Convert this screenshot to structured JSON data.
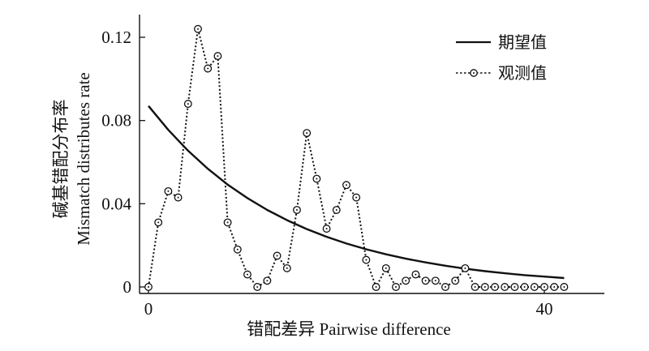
{
  "chart_data": {
    "type": "line",
    "xlabel": "错配差异 Pairwise difference",
    "ylabel_cn": "碱基错配分布率",
    "ylabel_en": "Mismatch distributes rate",
    "xlim": [
      0,
      46
    ],
    "ylim": [
      0,
      0.13
    ],
    "x_ticks": [
      0,
      40
    ],
    "x_tick_labels": [
      "0",
      "40"
    ],
    "y_ticks": [
      0,
      0.04,
      0.08,
      0.12
    ],
    "y_tick_labels": [
      "0",
      "0.04",
      "0.08",
      "0.12"
    ],
    "legend_position": "top-right",
    "colors": {
      "line": "#111111",
      "background": "#ffffff"
    },
    "series": [
      {
        "name": "期望值",
        "style": "solid",
        "x": [
          0,
          2,
          4,
          6,
          8,
          10,
          12,
          14,
          16,
          18,
          20,
          22,
          24,
          26,
          28,
          30,
          32,
          34,
          36,
          38,
          40,
          42
        ],
        "values": [
          0.087,
          0.0755,
          0.0655,
          0.0568,
          0.0492,
          0.0427,
          0.037,
          0.0321,
          0.0278,
          0.0241,
          0.0209,
          0.0181,
          0.0157,
          0.0136,
          0.0118,
          0.0102,
          0.0088,
          0.0076,
          0.0066,
          0.0057,
          0.005,
          0.0043
        ]
      },
      {
        "name": "观测值",
        "style": "dotted-markers",
        "x": [
          0,
          1,
          2,
          3,
          4,
          5,
          6,
          7,
          8,
          9,
          10,
          11,
          12,
          13,
          14,
          15,
          16,
          17,
          18,
          19,
          20,
          21,
          22,
          23,
          24,
          25,
          26,
          27,
          28,
          29,
          30,
          31,
          32,
          33,
          34,
          35,
          36,
          37,
          38,
          39,
          40,
          41,
          42
        ],
        "values": [
          0.0,
          0.031,
          0.046,
          0.043,
          0.088,
          0.124,
          0.105,
          0.111,
          0.031,
          0.018,
          0.006,
          0.0,
          0.003,
          0.015,
          0.009,
          0.037,
          0.074,
          0.052,
          0.028,
          0.037,
          0.049,
          0.043,
          0.013,
          0.0,
          0.009,
          0.0,
          0.003,
          0.006,
          0.003,
          0.003,
          0.0,
          0.003,
          0.009,
          0.0,
          0.0,
          0.0,
          0.0,
          0.0,
          0.0,
          0.0,
          0.0,
          0.0,
          0.0
        ]
      }
    ]
  }
}
